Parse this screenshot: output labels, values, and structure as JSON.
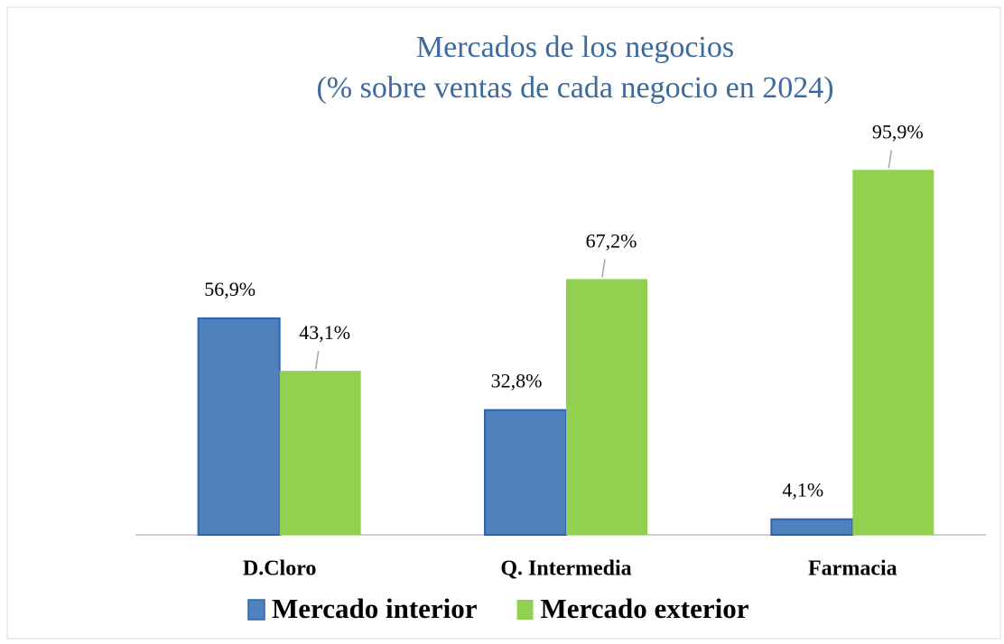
{
  "chart_data": {
    "type": "bar",
    "title": "Mercados de los negocios",
    "subtitle": "(% sobre ventas de cada negocio en 2024)",
    "categories": [
      "D.Cloro",
      "Q. Intermedia",
      "Farmacia"
    ],
    "series": [
      {
        "name": "Mercado interior",
        "color": "#4f81bd",
        "values": [
          56.9,
          32.8,
          4.1
        ],
        "value_labels": [
          "56,9%",
          "32,8%",
          "4,1%"
        ]
      },
      {
        "name": "Mercado exterior",
        "color": "#92d050",
        "values": [
          43.1,
          67.2,
          95.9
        ],
        "value_labels": [
          "43,1%",
          "67,2%",
          "95,9%"
        ]
      }
    ],
    "ylim": [
      0,
      100
    ],
    "legend": "bottom"
  }
}
